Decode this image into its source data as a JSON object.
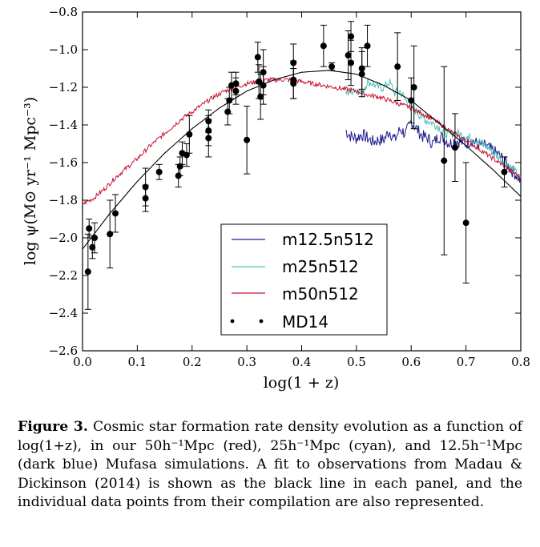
{
  "chart_data": {
    "type": "line",
    "xlabel": "log(1 + z)",
    "ylabel": "log ψ(M⊙ yr⁻¹ Mpc⁻³)",
    "xlim": [
      0.0,
      0.8
    ],
    "ylim": [
      -2.6,
      -0.8
    ],
    "xticks": [
      0.0,
      0.1,
      0.2,
      0.3,
      0.4,
      0.5,
      0.6,
      0.7,
      0.8
    ],
    "yticks": [
      -2.6,
      -2.4,
      -2.2,
      -2.0,
      -1.8,
      -1.6,
      -1.4,
      -1.2,
      -1.0,
      -0.8
    ],
    "xtick_labels": [
      "0.0",
      "0.1",
      "0.2",
      "0.3",
      "0.4",
      "0.5",
      "0.6",
      "0.7",
      "0.8"
    ],
    "ytick_labels": [
      "−2.6",
      "−2.4",
      "−2.2",
      "−2.0",
      "−1.8",
      "−1.6",
      "−1.4",
      "−1.2",
      "−1.0",
      "−0.8"
    ],
    "grid": false,
    "legend_position": "lower-center",
    "series": [
      {
        "name": "m12.5n512",
        "color": "#1a1a8c",
        "style": "noisy-line",
        "x": [
          0.48,
          0.49,
          0.5,
          0.51,
          0.52,
          0.53,
          0.54,
          0.55,
          0.56,
          0.57,
          0.58,
          0.59,
          0.6,
          0.61,
          0.62,
          0.63,
          0.64,
          0.65,
          0.66,
          0.67,
          0.68,
          0.69,
          0.7,
          0.71,
          0.72,
          0.73,
          0.74,
          0.75,
          0.76,
          0.77,
          0.78,
          0.79,
          0.8
        ],
        "values": [
          -1.43,
          -1.46,
          -1.47,
          -1.45,
          -1.47,
          -1.49,
          -1.48,
          -1.48,
          -1.43,
          -1.48,
          -1.42,
          -1.45,
          -1.38,
          -1.42,
          -1.46,
          -1.47,
          -1.5,
          -1.46,
          -1.47,
          -1.5,
          -1.48,
          -1.49,
          -1.5,
          -1.48,
          -1.5,
          -1.51,
          -1.52,
          -1.54,
          -1.56,
          -1.59,
          -1.63,
          -1.66,
          -1.7
        ]
      },
      {
        "name": "m25n512",
        "color": "#4ec3b4",
        "style": "noisy-line",
        "x": [
          0.48,
          0.49,
          0.5,
          0.51,
          0.52,
          0.53,
          0.54,
          0.55,
          0.56,
          0.57,
          0.58,
          0.59,
          0.6,
          0.61,
          0.62,
          0.63,
          0.64,
          0.65,
          0.66,
          0.67,
          0.68,
          0.69,
          0.7,
          0.71,
          0.72,
          0.73,
          0.74,
          0.75,
          0.76,
          0.77,
          0.78,
          0.79,
          0.8
        ],
        "values": [
          -1.23,
          -1.22,
          -1.21,
          -1.23,
          -1.17,
          -1.18,
          -1.2,
          -1.2,
          -1.17,
          -1.23,
          -1.22,
          -1.27,
          -1.3,
          -1.33,
          -1.36,
          -1.38,
          -1.39,
          -1.41,
          -1.44,
          -1.45,
          -1.44,
          -1.45,
          -1.46,
          -1.47,
          -1.48,
          -1.5,
          -1.52,
          -1.55,
          -1.57,
          -1.6,
          -1.62,
          -1.65,
          -1.69
        ]
      },
      {
        "name": "m50n512",
        "color": "#c8102e",
        "style": "noisy-line",
        "x": [
          0.0,
          0.02,
          0.04,
          0.06,
          0.08,
          0.1,
          0.12,
          0.14,
          0.16,
          0.18,
          0.2,
          0.22,
          0.24,
          0.26,
          0.28,
          0.3,
          0.32,
          0.34,
          0.36,
          0.38,
          0.4,
          0.42,
          0.44,
          0.46,
          0.48,
          0.5,
          0.52,
          0.54,
          0.56,
          0.58,
          0.6,
          0.62,
          0.64,
          0.66,
          0.68,
          0.7,
          0.72,
          0.74,
          0.76,
          0.78,
          0.8
        ],
        "values": [
          -1.82,
          -1.79,
          -1.74,
          -1.68,
          -1.63,
          -1.58,
          -1.52,
          -1.47,
          -1.42,
          -1.37,
          -1.33,
          -1.29,
          -1.25,
          -1.22,
          -1.2,
          -1.18,
          -1.17,
          -1.16,
          -1.16,
          -1.16,
          -1.17,
          -1.18,
          -1.19,
          -1.2,
          -1.21,
          -1.22,
          -1.24,
          -1.25,
          -1.27,
          -1.29,
          -1.31,
          -1.34,
          -1.37,
          -1.41,
          -1.45,
          -1.48,
          -1.52,
          -1.56,
          -1.6,
          -1.64,
          -1.68
        ]
      },
      {
        "name": "",
        "color": "#000000",
        "style": "fit-line",
        "x": [
          0.0,
          0.05,
          0.1,
          0.15,
          0.2,
          0.25,
          0.3,
          0.35,
          0.4,
          0.45,
          0.5,
          0.55,
          0.6,
          0.65,
          0.7,
          0.75,
          0.8
        ],
        "values": [
          -2.06,
          -1.87,
          -1.7,
          -1.55,
          -1.42,
          -1.31,
          -1.22,
          -1.16,
          -1.12,
          -1.11,
          -1.13,
          -1.19,
          -1.27,
          -1.39,
          -1.51,
          -1.64,
          -1.78
        ]
      },
      {
        "name": "MD14",
        "color": "#000000",
        "style": "points-with-errorbars",
        "x": [
          0.01,
          0.012,
          0.018,
          0.022,
          0.05,
          0.06,
          0.115,
          0.115,
          0.14,
          0.175,
          0.178,
          0.182,
          0.19,
          0.195,
          0.23,
          0.23,
          0.23,
          0.265,
          0.268,
          0.272,
          0.28,
          0.28,
          0.3,
          0.32,
          0.322,
          0.325,
          0.33,
          0.33,
          0.385,
          0.385,
          0.385,
          0.44,
          0.455,
          0.485,
          0.49,
          0.49,
          0.51,
          0.51,
          0.52,
          0.575,
          0.6,
          0.605,
          0.66,
          0.68,
          0.7,
          0.77
        ],
        "values": [
          -2.18,
          -1.95,
          -2.05,
          -2.0,
          -1.98,
          -1.87,
          -1.79,
          -1.73,
          -1.65,
          -1.67,
          -1.62,
          -1.55,
          -1.56,
          -1.45,
          -1.47,
          -1.43,
          -1.38,
          -1.33,
          -1.27,
          -1.19,
          -1.22,
          -1.18,
          -1.48,
          -1.04,
          -1.17,
          -1.25,
          -1.19,
          -1.12,
          -1.18,
          -1.16,
          -1.07,
          -0.98,
          -1.09,
          -1.03,
          -1.07,
          -0.93,
          -1.1,
          -1.13,
          -0.98,
          -1.09,
          -1.27,
          -1.2,
          -1.59,
          -1.52,
          -1.92,
          -1.65
        ],
        "errors": [
          0.2,
          0.05,
          0.06,
          0.08,
          0.18,
          0.1,
          0.07,
          0.1,
          0.04,
          0.06,
          0.05,
          0.06,
          0.06,
          0.1,
          0.1,
          0.08,
          0.06,
          0.07,
          0.07,
          0.07,
          0.07,
          0.06,
          0.18,
          0.08,
          0.09,
          0.12,
          0.1,
          0.12,
          0.08,
          0.1,
          0.1,
          0.11,
          0.02,
          0.13,
          0.12,
          0.08,
          0.11,
          0.12,
          0.11,
          0.18,
          0.12,
          0.22,
          0.5,
          0.18,
          0.32,
          0.08
        ]
      }
    ],
    "legend": [
      "m12.5n512",
      "m25n512",
      "m50n512",
      "MD14"
    ]
  },
  "caption": {
    "label": "Figure 3.",
    "text": "Cosmic star formation rate density evolution as a function of log(1+z), in our 50h⁻¹Mpc (red), 25h⁻¹Mpc (cyan), and 12.5h⁻¹Mpc (dark blue) Mufasa simulations. A fit to observations from Madau & Dickinson (2014) is shown as the black line in each panel, and the individual data points from their compilation are also represented."
  }
}
